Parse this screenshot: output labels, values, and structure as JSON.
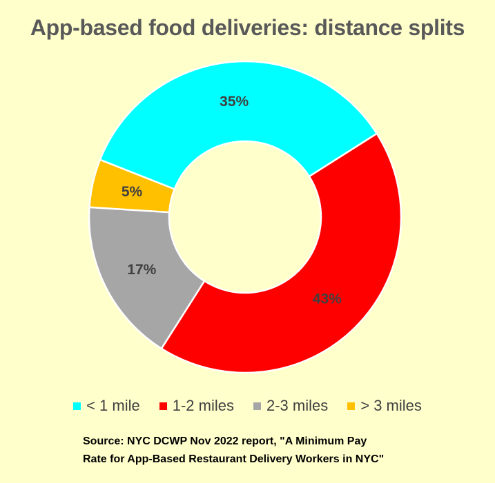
{
  "chart_data": {
    "type": "pie",
    "variant": "doughnut",
    "title": "App-based food deliveries: distance splits",
    "categories": [
      "< 1 mile",
      "1-2 miles",
      "2-3 miles",
      "> 3 miles"
    ],
    "values": [
      35,
      43,
      17,
      5
    ],
    "data_labels": [
      "35%",
      "43%",
      "17%",
      "5%"
    ],
    "colors": [
      "#00FFFF",
      "#FF0000",
      "#A6A6A6",
      "#FFC000"
    ],
    "legend_position": "bottom"
  },
  "source": {
    "line1": "Source:  NYC DCWP Nov 2022 report, \"A Minimum Pay",
    "line2": "Rate for App-Based Restaurant Delivery Workers in NYC\""
  },
  "colors": {
    "background": "#FFFFCC",
    "title": "#595959",
    "label": "#404040"
  }
}
